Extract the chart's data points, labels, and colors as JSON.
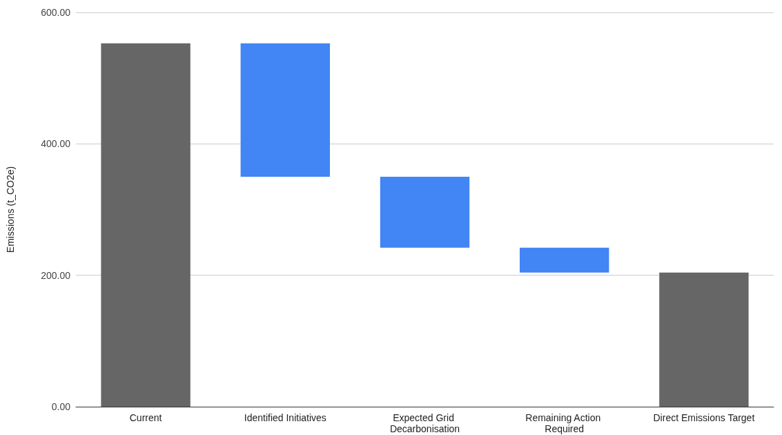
{
  "chart_data": {
    "type": "bar",
    "ylabel": "Emissions (t_CO2e)",
    "categories": [
      "Current",
      "Identified Initiatives",
      "Expected Grid Decarbonisation",
      "Remaining Action Required",
      "Direct Emissions Target"
    ],
    "values": [
      553,
      -203,
      -108,
      -38,
      204
    ],
    "base": [
      0,
      553,
      350,
      242,
      0
    ],
    "colors": [
      "#666666",
      "#4285f4",
      "#4285f4",
      "#4285f4",
      "#666666"
    ],
    "ylim": [
      0,
      600
    ],
    "yticks": [
      {
        "value": 0,
        "label": "0.00"
      },
      {
        "value": 200,
        "label": "200.00"
      },
      {
        "value": 400,
        "label": "400.00"
      },
      {
        "value": 600,
        "label": "600.00"
      }
    ],
    "grid": "y"
  }
}
